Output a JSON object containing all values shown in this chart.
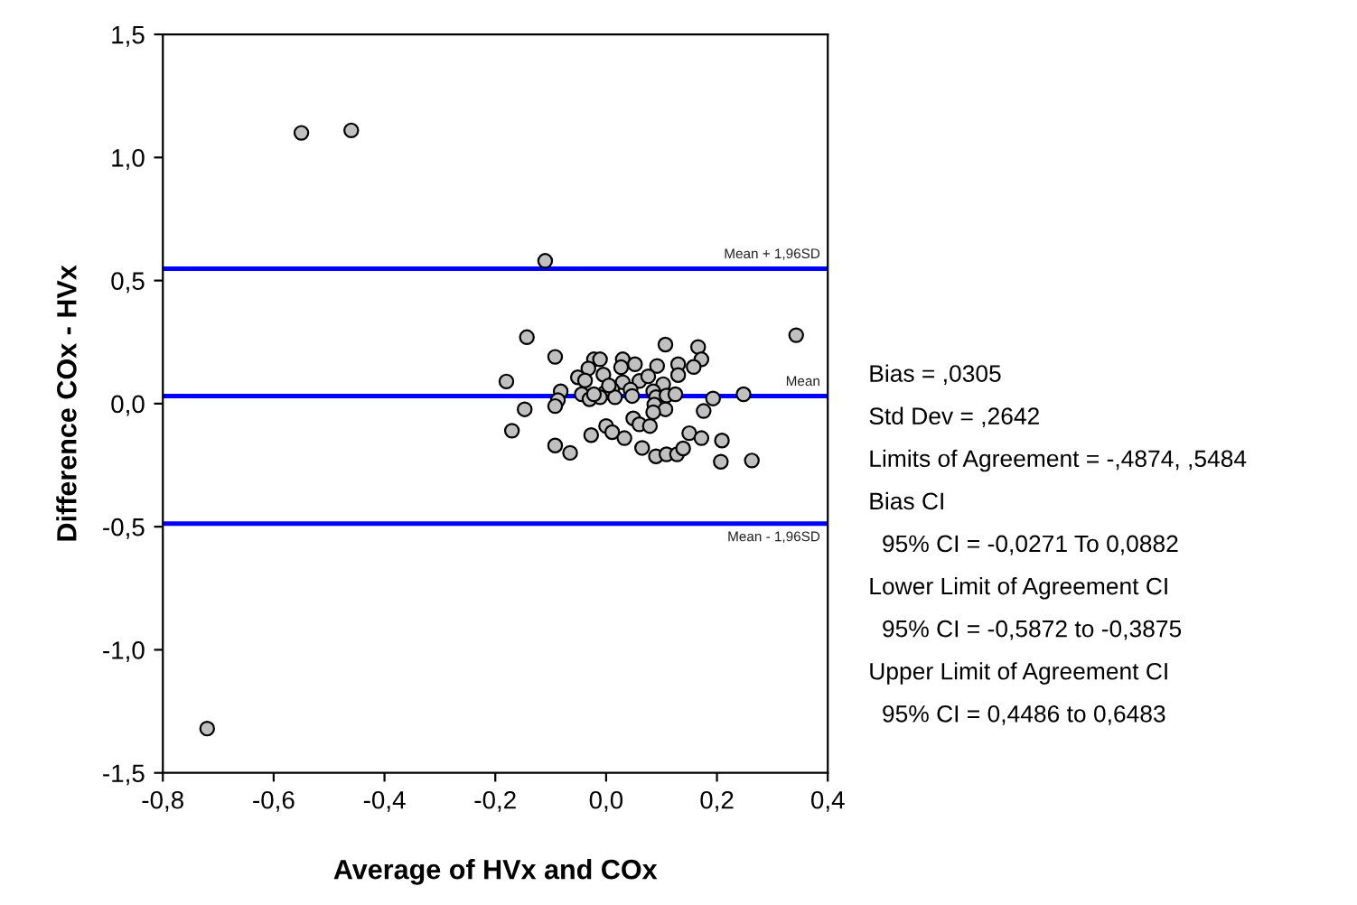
{
  "chart_data": {
    "type": "scatter",
    "xlabel": "Average of HVx and COx",
    "ylabel": "Difference COx - HVx",
    "xlim": [
      -0.8,
      0.4
    ],
    "ylim": [
      -1.5,
      1.5
    ],
    "xticks": [
      {
        "value": -0.8,
        "label": "-0,8"
      },
      {
        "value": -0.6,
        "label": "-0,6"
      },
      {
        "value": -0.4,
        "label": "-0,4"
      },
      {
        "value": -0.2,
        "label": "-0,2"
      },
      {
        "value": 0.0,
        "label": "0,0"
      },
      {
        "value": 0.2,
        "label": "0,2"
      },
      {
        "value": 0.4,
        "label": "0,4"
      }
    ],
    "yticks": [
      {
        "value": -1.5,
        "label": "-1,5"
      },
      {
        "value": -1.0,
        "label": "-1,0"
      },
      {
        "value": -0.5,
        "label": "-0,5"
      },
      {
        "value": 0.0,
        "label": "0,0"
      },
      {
        "value": 0.5,
        "label": "0,5"
      },
      {
        "value": 1.0,
        "label": "1,0"
      },
      {
        "value": 1.5,
        "label": "1,5"
      }
    ],
    "grid": false,
    "legend": false,
    "marker": "circle",
    "series": [
      {
        "color": "#c0c0c0",
        "x": [
          -0.55,
          -0.46,
          -0.72,
          -0.11,
          -0.143,
          0.343,
          0.107,
          0.166,
          0.172,
          0.158,
          -0.092,
          -0.022,
          -0.011,
          0.03,
          0.052,
          0.092,
          0.13,
          0.13,
          -0.032,
          -0.005,
          -0.051,
          -0.038,
          0.027,
          0.03,
          0.06,
          0.076,
          0.103,
          0.085,
          0.044,
          0.011,
          -0.002,
          -0.082,
          -0.044,
          -0.03,
          -0.011,
          0.016,
          0.047,
          0.09,
          0.109,
          0.125,
          0.193,
          0.248,
          -0.087,
          -0.092,
          -0.147,
          0.087,
          0.107,
          0.085,
          0.176,
          0.049,
          0.06,
          0.079,
          0.0,
          0.011,
          -0.027,
          0.033,
          -0.092,
          -0.065,
          0.065,
          0.09,
          0.109,
          0.128,
          0.139,
          0.15,
          0.172,
          0.209,
          0.207,
          0.263,
          -0.022,
          0.005,
          -0.18,
          -0.17
        ],
        "values": [
          1.1,
          1.11,
          -1.32,
          0.58,
          0.27,
          0.278,
          0.24,
          0.23,
          0.18,
          0.149,
          0.19,
          0.18,
          0.18,
          0.18,
          0.16,
          0.153,
          0.16,
          0.116,
          0.143,
          0.118,
          0.107,
          0.094,
          0.148,
          0.087,
          0.092,
          0.111,
          0.079,
          0.05,
          0.057,
          0.057,
          0.045,
          0.05,
          0.038,
          0.018,
          0.026,
          0.026,
          0.031,
          0.026,
          0.033,
          0.038,
          0.021,
          0.038,
          0.014,
          -0.01,
          -0.023,
          -0.004,
          -0.023,
          -0.035,
          -0.03,
          -0.06,
          -0.084,
          -0.091,
          -0.091,
          -0.116,
          -0.128,
          -0.14,
          -0.17,
          -0.2,
          -0.18,
          -0.214,
          -0.206,
          -0.206,
          -0.182,
          -0.12,
          -0.14,
          -0.15,
          -0.236,
          -0.231,
          0.038,
          0.074,
          0.09,
          -0.11
        ]
      }
    ],
    "ref_lines": [
      {
        "axis": "y",
        "value": 0.5484,
        "label": "Mean + 1,96SD",
        "color": "#0000ff"
      },
      {
        "axis": "y",
        "value": 0.0305,
        "label": "Mean",
        "color": "#0000ff"
      },
      {
        "axis": "y",
        "value": -0.4874,
        "label": "Mean - 1,96SD",
        "color": "#0000ff"
      }
    ],
    "annotations": [
      "Bias = ,0305",
      "Std Dev = ,2642",
      "Limits of Agreement = -,4874, ,5484",
      "Bias CI",
      "  95% CI = -0,0271 To 0,0882",
      "Lower Limit of Agreement CI",
      "  95% CI = -0,5872 to -0,3875",
      "Upper Limit of Agreement CI",
      "  95% CI = 0,4486 to 0,6483"
    ]
  }
}
